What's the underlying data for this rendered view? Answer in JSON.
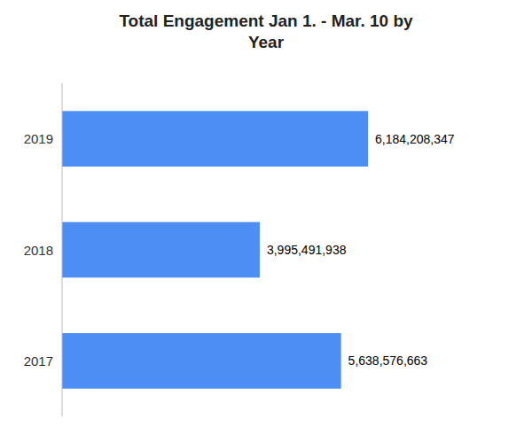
{
  "chart_data": {
    "type": "bar",
    "orientation": "horizontal",
    "title": "Total Engagement Jan 1. - Mar. 10 by\nYear",
    "categories": [
      "2019",
      "2018",
      "2017"
    ],
    "values": [
      6184208347,
      3995491938,
      5638576663
    ],
    "value_labels": [
      "6,184,208,347",
      "3,995,491,938",
      "5,638,576,663"
    ],
    "color": "#4D8EF5",
    "xlim": [
      0,
      8781575852.74
    ],
    "data_labels": true,
    "tick_labels": "y",
    "grid": false
  }
}
